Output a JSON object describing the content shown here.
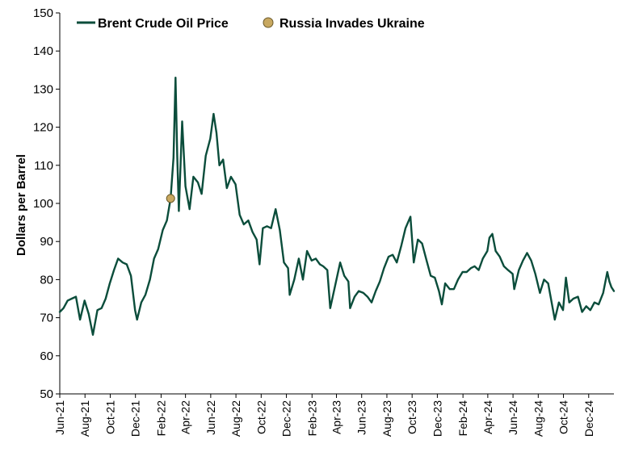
{
  "chart_data": {
    "type": "line",
    "title": "",
    "xlabel": "",
    "ylabel": "Dollars per Barrel",
    "ylim": [
      50,
      150
    ],
    "yticks": [
      50,
      60,
      70,
      80,
      90,
      100,
      110,
      120,
      130,
      140,
      150
    ],
    "xlim": [
      "2021-06-01",
      "2025-01-31"
    ],
    "xticks": [
      "Jun-21",
      "Aug-21",
      "Oct-21",
      "Dec-21",
      "Feb-22",
      "Apr-22",
      "Jun-22",
      "Aug-22",
      "Oct-22",
      "Dec-22",
      "Feb-23",
      "Apr-23",
      "Jun-23",
      "Aug-23",
      "Oct-23",
      "Dec-23",
      "Feb-24",
      "Apr-24",
      "Jun-24",
      "Aug-24",
      "Oct-24",
      "Dec-24"
    ],
    "grid": false,
    "legend": "top-left",
    "series": [
      {
        "name": "Brent Crude Oil Price",
        "color": "#0b4d3b",
        "points": [
          [
            "2021-06-01",
            71.5
          ],
          [
            "2021-06-10",
            72.5
          ],
          [
            "2021-06-20",
            74.5
          ],
          [
            "2021-06-30",
            75.0
          ],
          [
            "2021-07-10",
            75.5
          ],
          [
            "2021-07-20",
            69.5
          ],
          [
            "2021-07-31",
            74.5
          ],
          [
            "2021-08-10",
            71.0
          ],
          [
            "2021-08-20",
            65.5
          ],
          [
            "2021-08-31",
            72.0
          ],
          [
            "2021-09-10",
            72.5
          ],
          [
            "2021-09-20",
            75.0
          ],
          [
            "2021-09-30",
            79.0
          ],
          [
            "2021-10-10",
            82.5
          ],
          [
            "2021-10-20",
            85.5
          ],
          [
            "2021-10-31",
            84.5
          ],
          [
            "2021-11-10",
            84.0
          ],
          [
            "2021-11-20",
            81.0
          ],
          [
            "2021-11-30",
            72.0
          ],
          [
            "2021-12-05",
            69.5
          ],
          [
            "2021-12-15",
            74.0
          ],
          [
            "2021-12-25",
            76.0
          ],
          [
            "2022-01-05",
            80.0
          ],
          [
            "2022-01-15",
            85.5
          ],
          [
            "2022-01-25",
            88.0
          ],
          [
            "2022-02-05",
            93.0
          ],
          [
            "2022-02-15",
            95.5
          ],
          [
            "2022-02-24",
            101.3
          ],
          [
            "2022-03-03",
            112.0
          ],
          [
            "2022-03-08",
            133.0
          ],
          [
            "2022-03-12",
            112.5
          ],
          [
            "2022-03-16",
            98.0
          ],
          [
            "2022-03-24",
            121.5
          ],
          [
            "2022-04-01",
            104.5
          ],
          [
            "2022-04-11",
            98.5
          ],
          [
            "2022-04-20",
            107.0
          ],
          [
            "2022-05-01",
            105.5
          ],
          [
            "2022-05-10",
            102.5
          ],
          [
            "2022-05-20",
            112.5
          ],
          [
            "2022-05-31",
            117.0
          ],
          [
            "2022-06-08",
            123.5
          ],
          [
            "2022-06-15",
            118.5
          ],
          [
            "2022-06-22",
            110.0
          ],
          [
            "2022-07-01",
            111.5
          ],
          [
            "2022-07-10",
            104.0
          ],
          [
            "2022-07-20",
            107.0
          ],
          [
            "2022-07-31",
            105.0
          ],
          [
            "2022-08-10",
            97.0
          ],
          [
            "2022-08-20",
            94.5
          ],
          [
            "2022-08-31",
            95.5
          ],
          [
            "2022-09-10",
            92.5
          ],
          [
            "2022-09-20",
            90.5
          ],
          [
            "2022-09-27",
            84.0
          ],
          [
            "2022-10-05",
            93.5
          ],
          [
            "2022-10-15",
            94.0
          ],
          [
            "2022-10-25",
            93.5
          ],
          [
            "2022-11-05",
            98.5
          ],
          [
            "2022-11-15",
            93.0
          ],
          [
            "2022-11-25",
            84.5
          ],
          [
            "2022-12-05",
            83.0
          ],
          [
            "2022-12-09",
            76.0
          ],
          [
            "2022-12-20",
            80.0
          ],
          [
            "2022-12-31",
            85.5
          ],
          [
            "2023-01-10",
            80.0
          ],
          [
            "2023-01-20",
            87.5
          ],
          [
            "2023-01-31",
            85.0
          ],
          [
            "2023-02-10",
            85.5
          ],
          [
            "2023-02-20",
            84.0
          ],
          [
            "2023-02-28",
            83.5
          ],
          [
            "2023-03-10",
            82.5
          ],
          [
            "2023-03-17",
            72.5
          ],
          [
            "2023-03-31",
            79.5
          ],
          [
            "2023-04-10",
            84.5
          ],
          [
            "2023-04-20",
            81.0
          ],
          [
            "2023-04-30",
            79.5
          ],
          [
            "2023-05-04",
            72.5
          ],
          [
            "2023-05-15",
            75.5
          ],
          [
            "2023-05-25",
            77.0
          ],
          [
            "2023-06-05",
            76.5
          ],
          [
            "2023-06-15",
            75.5
          ],
          [
            "2023-06-25",
            74.0
          ],
          [
            "2023-07-05",
            77.0
          ],
          [
            "2023-07-15",
            79.5
          ],
          [
            "2023-07-25",
            83.0
          ],
          [
            "2023-08-05",
            86.0
          ],
          [
            "2023-08-15",
            86.5
          ],
          [
            "2023-08-25",
            84.5
          ],
          [
            "2023-09-05",
            89.0
          ],
          [
            "2023-09-15",
            93.5
          ],
          [
            "2023-09-27",
            96.5
          ],
          [
            "2023-10-05",
            84.5
          ],
          [
            "2023-10-15",
            90.5
          ],
          [
            "2023-10-25",
            89.5
          ],
          [
            "2023-11-05",
            85.0
          ],
          [
            "2023-11-15",
            81.0
          ],
          [
            "2023-11-25",
            80.5
          ],
          [
            "2023-12-05",
            77.0
          ],
          [
            "2023-12-12",
            73.5
          ],
          [
            "2023-12-20",
            79.0
          ],
          [
            "2023-12-31",
            77.5
          ],
          [
            "2024-01-10",
            77.5
          ],
          [
            "2024-01-20",
            80.0
          ],
          [
            "2024-01-31",
            82.0
          ],
          [
            "2024-02-10",
            82.0
          ],
          [
            "2024-02-20",
            83.0
          ],
          [
            "2024-02-29",
            83.5
          ],
          [
            "2024-03-10",
            82.5
          ],
          [
            "2024-03-20",
            85.5
          ],
          [
            "2024-03-31",
            87.5
          ],
          [
            "2024-04-05",
            91.0
          ],
          [
            "2024-04-12",
            92.0
          ],
          [
            "2024-04-20",
            87.5
          ],
          [
            "2024-04-30",
            86.0
          ],
          [
            "2024-05-10",
            83.5
          ],
          [
            "2024-05-20",
            82.5
          ],
          [
            "2024-05-31",
            81.5
          ],
          [
            "2024-06-04",
            77.5
          ],
          [
            "2024-06-15",
            82.5
          ],
          [
            "2024-06-25",
            85.0
          ],
          [
            "2024-07-05",
            87.0
          ],
          [
            "2024-07-15",
            85.0
          ],
          [
            "2024-07-25",
            81.5
          ],
          [
            "2024-08-05",
            76.5
          ],
          [
            "2024-08-15",
            80.0
          ],
          [
            "2024-08-25",
            79.0
          ],
          [
            "2024-09-05",
            72.5
          ],
          [
            "2024-09-10",
            69.5
          ],
          [
            "2024-09-20",
            74.0
          ],
          [
            "2024-09-30",
            72.0
          ],
          [
            "2024-10-07",
            80.5
          ],
          [
            "2024-10-15",
            74.0
          ],
          [
            "2024-10-25",
            75.0
          ],
          [
            "2024-11-05",
            75.5
          ],
          [
            "2024-11-15",
            71.5
          ],
          [
            "2024-11-25",
            73.0
          ],
          [
            "2024-12-05",
            72.0
          ],
          [
            "2024-12-15",
            74.0
          ],
          [
            "2024-12-25",
            73.5
          ],
          [
            "2025-01-05",
            76.5
          ],
          [
            "2025-01-15",
            82.0
          ],
          [
            "2025-01-20",
            79.5
          ],
          [
            "2025-01-25",
            78.0
          ],
          [
            "2025-01-31",
            77.0
          ]
        ]
      }
    ],
    "event": {
      "name": "Russia Invades Ukraine",
      "date": "2022-02-24",
      "value": 101.3,
      "color": "#c8a860"
    }
  }
}
